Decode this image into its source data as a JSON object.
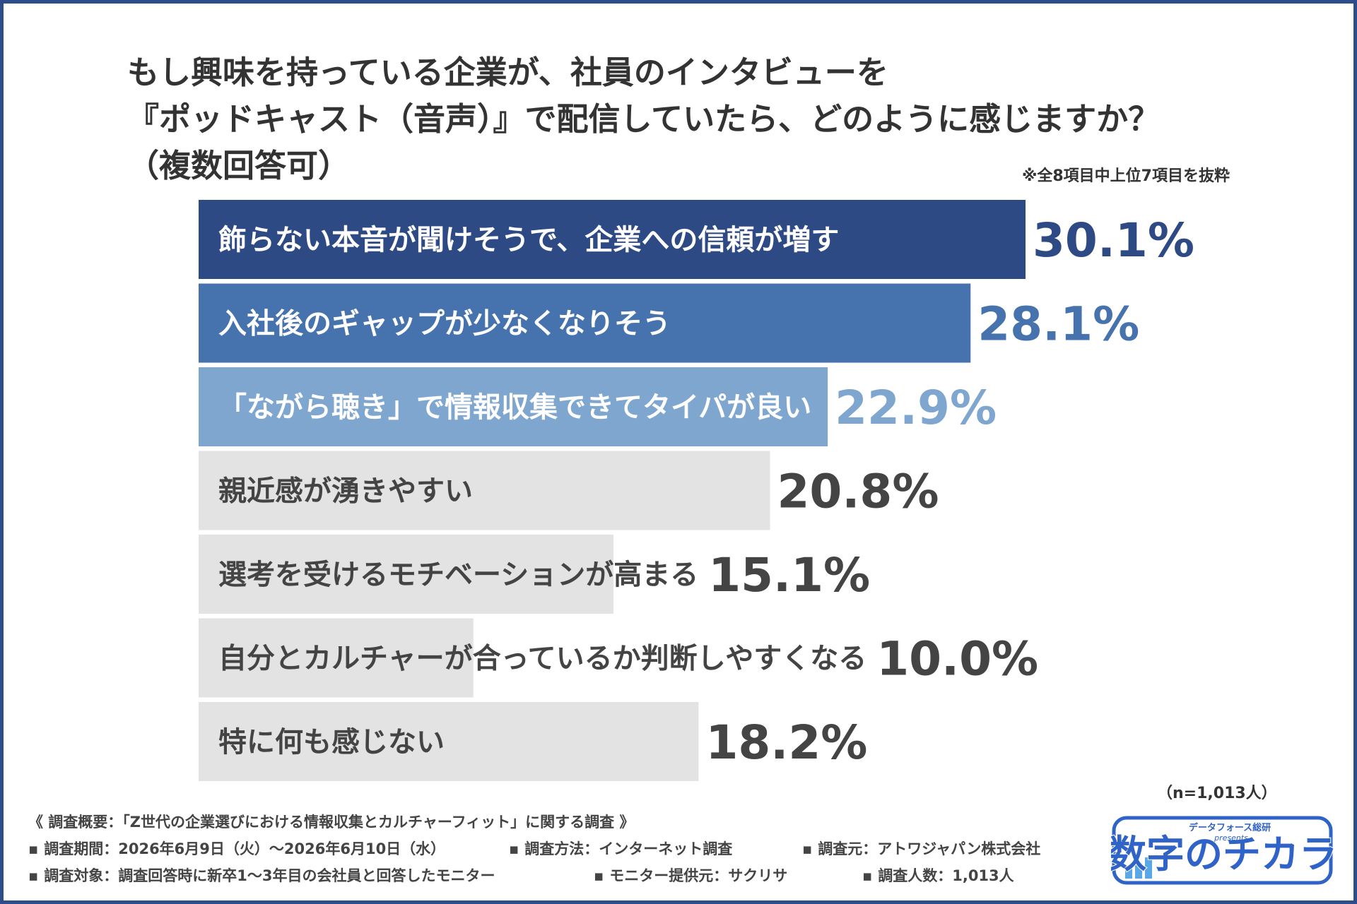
{
  "title": {
    "line1": "もし興味を持っている企業が、社員のインタビューを",
    "line2": "『ポッドキャスト（音声）』で配信していたら、どのように感じますか？",
    "line3": "（複数回答可）"
  },
  "note": "※全8項目中上位7項目を抜粋",
  "sample_size": "（n=1,013人）",
  "chart_data": {
    "type": "bar",
    "orientation": "horizontal",
    "categories": [
      "飾らない本音が聞けそうで、企業への信頼が増す",
      "入社後のギャップが少なくなりそう",
      "「ながら聴き」で情報収集できてタイパが良い",
      "親近感が湧きやすい",
      "選考を受けるモチベーションが高まる",
      "自分とカルチャーが合っているか判断しやすくなる",
      "特に何も感じない"
    ],
    "values": [
      30.1,
      28.1,
      22.9,
      20.8,
      15.1,
      10.0,
      18.2
    ],
    "value_labels": [
      "30.1%",
      "28.1%",
      "22.9%",
      "20.8%",
      "15.1%",
      "10.0%",
      "18.2%"
    ],
    "bar_colors": [
      "#2e4a85",
      "#4672ae",
      "#7ea6cf",
      "#e3e3e3",
      "#e3e3e3",
      "#e3e3e3",
      "#e3e3e3"
    ],
    "label_colors": [
      "#ffffff",
      "#ffffff",
      "#ffffff",
      "#444444",
      "#444444",
      "#444444",
      "#444444"
    ],
    "value_colors": [
      "#2e4a85",
      "#4672ae",
      "#7ea6cf",
      "#444444",
      "#444444",
      "#444444",
      "#444444"
    ],
    "xlim": [
      0,
      30.1
    ],
    "grid": false,
    "legend": "none"
  },
  "footer": {
    "summary": "《 調査概要：「Z世代の企業選びにおける情報収集とカルチャーフィット」に関する調査 》",
    "period": "調査期間：2026年6月9日（火）〜2026年6月10日（水）",
    "method": "調査方法：インターネット調査",
    "source": "調査元：アトワジャパン株式会社",
    "target": "調査対象：調査回答時に新卒1〜3年目の会社員と回答したモニター",
    "provider": "モニター提供元：サクリサ",
    "count": "調査人数：1,013人"
  },
  "logo": {
    "main_text": "数字のチカラ",
    "sub_text": "データフォース総研",
    "presents": "presents",
    "primary_color": "#2f63c8",
    "accent_color": "#5aa7e8"
  }
}
